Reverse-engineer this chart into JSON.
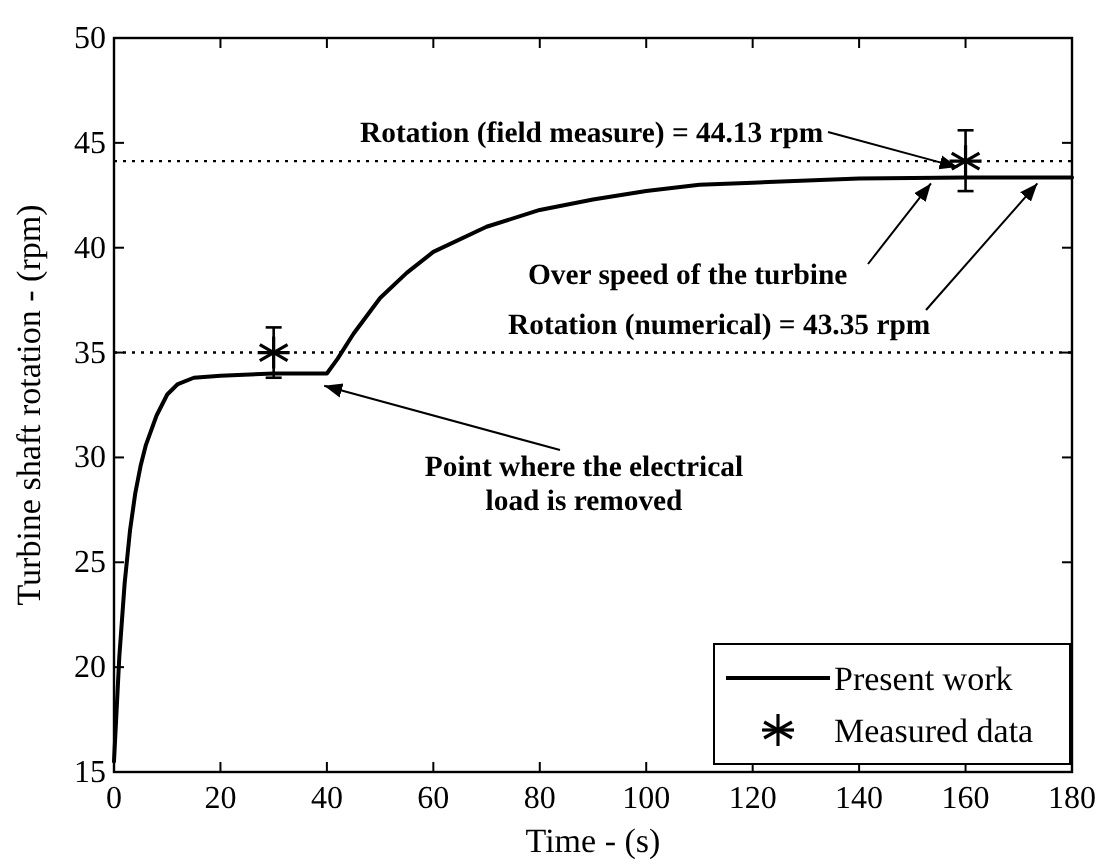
{
  "chart_data": {
    "type": "line",
    "xlabel": "Time - (s)",
    "ylabel": "Turbine shaft rotation - (rpm)",
    "xlim": [
      0,
      180
    ],
    "xticks": [
      0,
      20,
      40,
      60,
      80,
      100,
      120,
      140,
      160,
      180
    ],
    "ylim": [
      15,
      50
    ],
    "yticks": [
      15,
      20,
      25,
      30,
      35,
      40,
      45,
      50
    ],
    "legend": "bottom right",
    "grid": false,
    "series": [
      {
        "name": "Present work",
        "color": "#000000",
        "line_style": "solid",
        "x": [
          0,
          0.5,
          1,
          2,
          3,
          4,
          5,
          6,
          8,
          10,
          12,
          15,
          20,
          30,
          40,
          42,
          45,
          50,
          55,
          60,
          70,
          80,
          90,
          100,
          110,
          120,
          140,
          160,
          180
        ],
        "values": [
          15.5,
          18,
          20.5,
          24,
          26.5,
          28.3,
          29.6,
          30.6,
          32,
          33,
          33.5,
          33.8,
          33.9,
          34,
          34,
          34.7,
          35.9,
          37.6,
          38.8,
          39.8,
          41,
          41.8,
          42.3,
          42.7,
          43,
          43.1,
          43.3,
          43.35,
          43.35
        ]
      },
      {
        "name": "Measured data",
        "type": "scatter",
        "color": "#000000",
        "marker": "cross",
        "x": [
          30,
          160
        ],
        "values": [
          35,
          44.13
        ],
        "errors": [
          [
            33.8,
            36.2
          ],
          [
            42.7,
            45.6
          ]
        ]
      }
    ],
    "ref_lines": [
      {
        "axis": "y",
        "value": 35,
        "line_style": "dotted",
        "color": "#000000"
      },
      {
        "axis": "y",
        "value": 44.13,
        "line_style": "dotted",
        "color": "#000000"
      }
    ],
    "annotations": [
      {
        "text": "Rotation (field measure) = 44.13 rpm",
        "x": 160,
        "y": 44.13
      },
      {
        "text": "Over speed of the turbine",
        "x": 155,
        "y": 43.35
      },
      {
        "text": "Rotation (numerical) = 43.35 rpm",
        "x": 175,
        "y": 43.35
      },
      {
        "text": "Point where the electrical load is removed",
        "x": 41,
        "y": 33.7
      }
    ]
  }
}
